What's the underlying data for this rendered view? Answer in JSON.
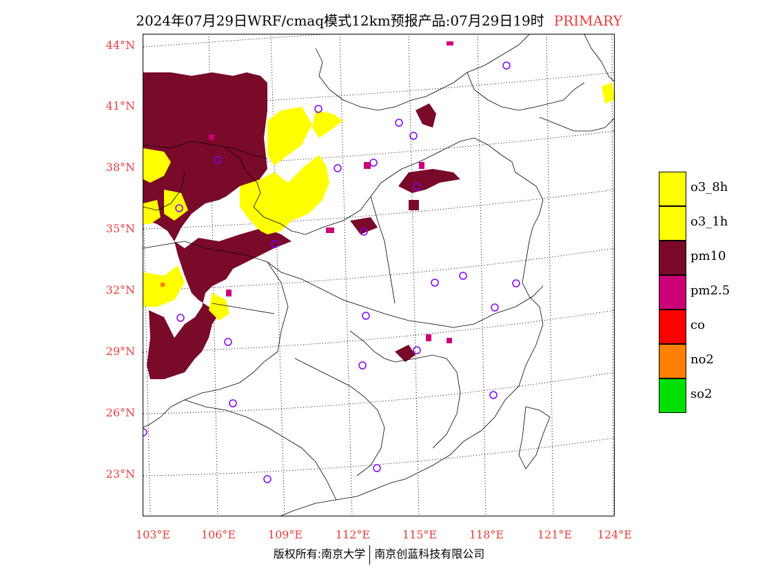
{
  "title": {
    "text": "2024年07月29日WRF/cmaq模式12km预报产品:07月29日19时",
    "tag": "PRIMARY"
  },
  "lat_labels": [
    "44°N",
    "41°N",
    "38°N",
    "35°N",
    "32°N",
    "29°N",
    "26°N",
    "23°N"
  ],
  "lon_labels": [
    "103°E",
    "106°E",
    "109°E",
    "112°E",
    "115°E",
    "118°E",
    "121°E",
    "124°E"
  ],
  "legend": [
    {
      "label": "o3_8h",
      "color": "#ffff00"
    },
    {
      "label": "o3_1h",
      "color": "#ffff00"
    },
    {
      "label": "pm10",
      "color": "#7a0a2a"
    },
    {
      "label": "pm2.5",
      "color": "#cc0077"
    },
    {
      "label": "co",
      "color": "#ff0000"
    },
    {
      "label": "no2",
      "color": "#ff8000"
    },
    {
      "label": "so2",
      "color": "#00e000"
    }
  ],
  "colors": {
    "title_accent": "#e83c3c",
    "axis_labels": "#e83c3c",
    "station_marker": "#8000ff"
  },
  "footer": {
    "left": "版权所有:南京大学",
    "right": "南京创蓝科技有限公司"
  }
}
